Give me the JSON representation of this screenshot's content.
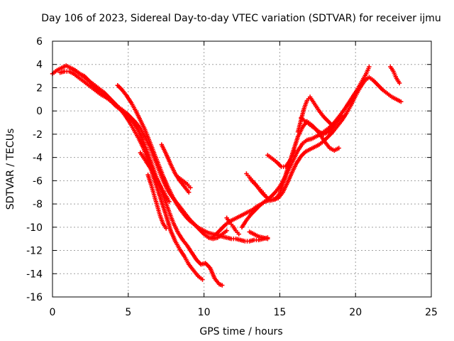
{
  "chart_data": {
    "type": "scatter",
    "title": "Day 106 of 2023, Sidereal Day-to-day VTEC variation (SDTVAR) for receiver ijmu",
    "xlabel": "GPS time / hours",
    "ylabel": "SDTVAR / TECUs",
    "xlim": [
      0,
      25
    ],
    "ylim": [
      -16,
      6
    ],
    "xticks": [
      0,
      5,
      10,
      15,
      20,
      25
    ],
    "yticks": [
      -16,
      -14,
      -12,
      -10,
      -8,
      -6,
      -4,
      -2,
      0,
      2,
      4,
      6
    ],
    "grid": true,
    "marker": "+",
    "color": "#ff0000",
    "series": [
      {
        "x": [
          0.0,
          0.3,
          0.6,
          0.9,
          1.2,
          1.5,
          1.8,
          2.1,
          2.4,
          2.7,
          3.0,
          3.3,
          3.6,
          3.9,
          4.2,
          4.5,
          4.8,
          5.1,
          5.4,
          5.7,
          6.0,
          6.3,
          6.6,
          6.9,
          7.2,
          7.5,
          7.8,
          8.1,
          8.4,
          8.7,
          9.0,
          9.3,
          9.6,
          9.9
        ],
        "y": [
          3.2,
          3.5,
          3.7,
          3.9,
          3.7,
          3.5,
          3.2,
          3.0,
          2.6,
          2.2,
          1.8,
          1.5,
          1.1,
          0.8,
          0.4,
          0.1,
          -0.4,
          -1.0,
          -1.7,
          -2.4,
          -3.2,
          -4.2,
          -5.4,
          -6.6,
          -7.8,
          -9.0,
          -10.3,
          -11.2,
          -11.9,
          -12.5,
          -13.2,
          -13.7,
          -14.2,
          -14.5
        ]
      },
      {
        "x": [
          0.5,
          0.8,
          1.1,
          1.4,
          1.7,
          2.0,
          2.3,
          2.6,
          2.9,
          3.2,
          3.5,
          3.8,
          4.1,
          4.4,
          4.7,
          5.0,
          5.3,
          5.6,
          5.9,
          6.2,
          6.5,
          6.8,
          7.1,
          7.4,
          7.7,
          8.0,
          8.3,
          8.6,
          8.9,
          9.2,
          9.5,
          9.8,
          10.1,
          10.4,
          10.7,
          11.0,
          11.2
        ],
        "y": [
          3.3,
          3.4,
          3.4,
          3.2,
          2.9,
          2.6,
          2.3,
          2.0,
          1.7,
          1.4,
          1.2,
          0.9,
          0.6,
          0.2,
          -0.1,
          -0.4,
          -0.9,
          -1.5,
          -2.3,
          -3.3,
          -4.4,
          -5.5,
          -6.5,
          -7.6,
          -8.7,
          -9.7,
          -10.5,
          -11.1,
          -11.6,
          -12.2,
          -12.8,
          -13.2,
          -13.1,
          -13.5,
          -14.4,
          -14.9,
          -15.0
        ]
      },
      {
        "x": [
          1.3,
          1.6,
          1.9,
          2.2,
          2.5,
          2.8,
          3.1,
          3.4,
          3.7,
          4.0,
          4.3,
          4.6,
          4.9,
          5.2,
          5.5,
          5.8,
          6.1,
          6.4,
          6.7,
          7.0,
          7.3,
          7.6,
          7.9,
          8.2,
          8.5,
          8.8,
          9.1,
          9.4,
          9.7,
          10.0,
          10.3,
          10.6,
          10.9,
          11.2,
          11.5
        ],
        "y": [
          3.6,
          3.4,
          3.1,
          2.8,
          2.5,
          2.2,
          1.9,
          1.6,
          1.2,
          0.8,
          0.4,
          0.1,
          -0.2,
          -0.6,
          -1.0,
          -1.5,
          -2.2,
          -3.0,
          -4.0,
          -5.0,
          -6.0,
          -6.8,
          -7.4,
          -7.9,
          -8.4,
          -8.9,
          -9.4,
          -9.8,
          -10.2,
          -10.6,
          -10.9,
          -11.0,
          -10.9,
          -10.6,
          -10.3
        ]
      },
      {
        "x": [
          4.3,
          4.6,
          4.9,
          5.2,
          5.5,
          5.8,
          6.1,
          6.4,
          6.7,
          7.0,
          7.3,
          7.6,
          7.9,
          8.2,
          8.5,
          8.8,
          9.1,
          9.4,
          9.7,
          10.0,
          10.3,
          10.6,
          10.9,
          11.2,
          11.5,
          11.8,
          12.1,
          12.4,
          12.7,
          13.0,
          13.3,
          13.6,
          13.9,
          14.2
        ],
        "y": [
          2.2,
          1.8,
          1.3,
          0.7,
          0.0,
          -0.8,
          -1.6,
          -2.6,
          -3.6,
          -4.6,
          -5.6,
          -6.5,
          -7.3,
          -8.0,
          -8.6,
          -9.1,
          -9.5,
          -9.8,
          -10.1,
          -10.3,
          -10.5,
          -10.6,
          -10.7,
          -10.8,
          -10.9,
          -11.0,
          -11.0,
          -11.1,
          -11.2,
          -11.2,
          -11.1,
          -11.1,
          -11.0,
          -10.9
        ]
      },
      {
        "x": [
          5.8,
          6.0,
          6.2,
          6.5,
          6.8,
          7.1,
          7.4,
          7.7
        ],
        "y": [
          -3.6,
          -4.0,
          -4.4,
          -5.0,
          -5.7,
          -6.4,
          -7.1,
          -7.8
        ]
      },
      {
        "x": [
          6.3,
          6.5,
          6.7,
          6.9,
          7.1,
          7.3,
          7.5
        ],
        "y": [
          -5.5,
          -6.3,
          -7.2,
          -8.1,
          -9.0,
          -9.7,
          -10.1
        ]
      },
      {
        "x": [
          7.2,
          7.5,
          7.8,
          8.1,
          8.4,
          8.7,
          9.0
        ],
        "y": [
          -2.9,
          -3.7,
          -4.6,
          -5.4,
          -6.0,
          -6.5,
          -7.0
        ]
      },
      {
        "x": [
          8.3,
          8.5,
          8.7,
          8.9,
          9.1
        ],
        "y": [
          -5.7,
          -5.9,
          -6.1,
          -6.3,
          -6.6
        ]
      },
      {
        "x": [
          10.5,
          10.8,
          11.1,
          11.4,
          11.7,
          12.0,
          12.3,
          12.6,
          12.9,
          13.2,
          13.5,
          13.8,
          14.1,
          14.4,
          14.7,
          15.0,
          15.3,
          15.6,
          15.9,
          16.2,
          16.5,
          16.8,
          17.1,
          17.4,
          17.7,
          18.0,
          18.3,
          18.6,
          18.9,
          19.2,
          19.5,
          19.8,
          20.1,
          20.4,
          20.7,
          20.9
        ],
        "y": [
          -10.9,
          -10.6,
          -10.2,
          -9.8,
          -9.5,
          -9.3,
          -9.1,
          -8.9,
          -8.7,
          -8.5,
          -8.2,
          -8.0,
          -7.7,
          -7.4,
          -7.0,
          -6.5,
          -5.8,
          -5.0,
          -4.2,
          -3.4,
          -2.8,
          -2.5,
          -2.4,
          -2.2,
          -2.0,
          -1.7,
          -1.4,
          -1.0,
          -0.5,
          0.0,
          0.6,
          1.2,
          1.8,
          2.5,
          3.2,
          3.8
        ]
      },
      {
        "x": [
          12.5,
          12.8,
          13.1,
          13.4,
          13.7,
          14.0,
          14.3,
          14.6,
          14.9,
          15.2,
          15.5,
          15.8,
          16.1,
          16.4,
          16.7,
          17.0,
          17.3,
          17.6,
          17.9,
          18.2,
          18.5,
          18.8,
          19.1,
          19.4,
          19.7,
          20.0,
          20.3,
          20.6,
          20.9,
          21.2,
          21.5,
          21.8,
          22.1,
          22.4,
          22.7,
          23.0
        ],
        "y": [
          -10.0,
          -9.4,
          -8.9,
          -8.5,
          -8.1,
          -7.8,
          -7.7,
          -7.6,
          -7.5,
          -7.0,
          -6.2,
          -5.3,
          -4.5,
          -3.9,
          -3.5,
          -3.3,
          -3.1,
          -2.9,
          -2.6,
          -2.2,
          -1.8,
          -1.3,
          -0.8,
          -0.2,
          0.5,
          1.3,
          2.0,
          2.6,
          2.9,
          2.6,
          2.2,
          1.8,
          1.5,
          1.2,
          1.0,
          0.8
        ]
      },
      {
        "x": [
          13.2,
          13.5,
          13.8,
          14.1,
          14.4,
          14.7,
          15.0,
          15.3,
          15.6,
          15.9,
          16.2,
          16.5,
          16.8,
          17.1,
          17.4,
          17.7,
          18.0,
          18.3,
          18.6,
          18.9
        ],
        "y": [
          -6.0,
          -6.5,
          -7.0,
          -7.4,
          -7.7,
          -7.6,
          -7.1,
          -5.9,
          -4.6,
          -3.4,
          -2.2,
          -1.4,
          -0.9,
          -1.2,
          -1.6,
          -2.1,
          -2.7,
          -3.2,
          -3.4,
          -3.2
        ]
      },
      {
        "x": [
          14.2,
          14.5,
          14.8,
          15.1,
          15.4,
          15.7,
          16.0
        ],
        "y": [
          -3.8,
          -4.1,
          -4.4,
          -4.8,
          -4.8,
          -4.2,
          -3.4
        ]
      },
      {
        "x": [
          16.2,
          16.4,
          16.6,
          16.8,
          17.0,
          17.2,
          17.4,
          17.6,
          17.9,
          18.2,
          18.5
        ],
        "y": [
          -1.8,
          -0.8,
          0.2,
          0.9,
          1.2,
          0.8,
          0.4,
          0.0,
          -0.5,
          -0.9,
          -1.3
        ]
      },
      {
        "x": [
          16.4,
          16.7,
          17.0,
          17.3,
          17.6,
          17.9,
          18.2,
          18.5,
          18.8,
          19.1
        ],
        "y": [
          -0.6,
          -0.9,
          -1.2,
          -1.5,
          -1.8,
          -2.0,
          -1.8,
          -1.4,
          -0.9,
          -0.4
        ]
      },
      {
        "x": [
          12.8,
          13.0,
          13.2,
          13.4,
          13.6,
          13.8,
          14.0
        ],
        "y": [
          -5.4,
          -5.7,
          -6.1,
          -6.3,
          -6.6,
          -6.9,
          -7.2
        ]
      },
      {
        "x": [
          11.5,
          11.7,
          11.9,
          12.1,
          12.3
        ],
        "y": [
          -9.2,
          -9.6,
          -9.9,
          -10.3,
          -10.6
        ]
      },
      {
        "x": [
          13.0,
          13.3,
          13.6,
          13.9,
          14.2
        ],
        "y": [
          -10.4,
          -10.6,
          -10.8,
          -10.9,
          -11.0
        ]
      },
      {
        "x": [
          22.3,
          22.5,
          22.7,
          22.9
        ],
        "y": [
          3.8,
          3.4,
          2.8,
          2.4
        ]
      }
    ]
  }
}
